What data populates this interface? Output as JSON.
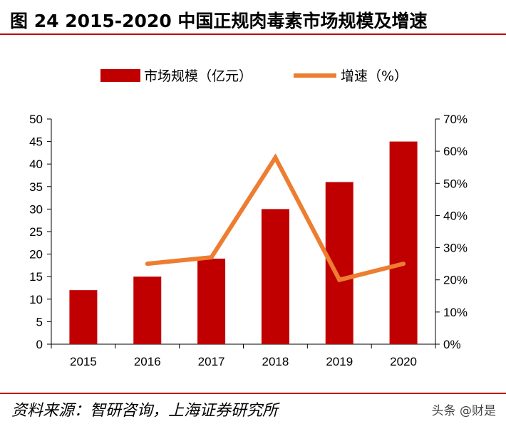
{
  "figure": {
    "title": "图 24 2015-2020 中国正规肉毒素市场规模及增速",
    "source": "资料来源：智研咨询，上海证券研究所",
    "watermark": "头条 @财是"
  },
  "chart_data": {
    "type": "bar",
    "categories": [
      "2015",
      "2016",
      "2017",
      "2018",
      "2019",
      "2020"
    ],
    "series": [
      {
        "name": "市场规模（亿元）",
        "type": "bar",
        "axis": "left",
        "values": [
          12,
          15,
          19,
          30,
          36,
          45
        ],
        "color": "#c00000"
      },
      {
        "name": "增速（%）",
        "type": "line",
        "axis": "right",
        "values": [
          null,
          25,
          27,
          58,
          20,
          25
        ],
        "color": "#ed7d31"
      }
    ],
    "y_left": {
      "lim": [
        0,
        50
      ],
      "ticks": [
        "0",
        "5",
        "10",
        "15",
        "20",
        "25",
        "30",
        "35",
        "40",
        "45",
        "50"
      ]
    },
    "y_right": {
      "lim": [
        0,
        70
      ],
      "ticks": [
        "0%",
        "10%",
        "20%",
        "30%",
        "40%",
        "50%",
        "60%",
        "70%"
      ]
    },
    "legend_position": "top-center",
    "grid": false
  }
}
